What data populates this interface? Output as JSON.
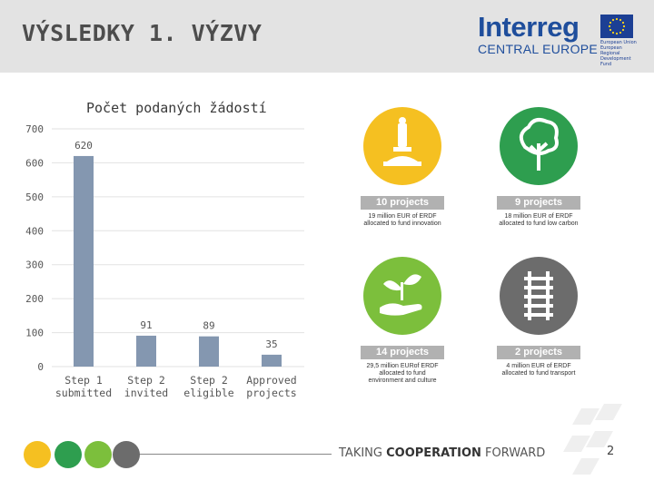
{
  "header": {
    "title": "VÝSLEDKY 1. VÝZVY"
  },
  "logo": {
    "word": "Interreg",
    "sub": "CENTRAL EUROPE",
    "eu_text": "European Union European Regional Development Fund"
  },
  "chart_data": {
    "type": "bar",
    "title": "Počet podaných žádostí",
    "categories": [
      [
        "Step 1",
        "submitted"
      ],
      [
        "Step 2",
        "invited"
      ],
      [
        "Step 2",
        "eligible"
      ],
      [
        "Approved",
        "projects"
      ]
    ],
    "values": [
      620,
      91,
      89,
      35
    ],
    "yticks": [
      0,
      100,
      200,
      300,
      400,
      500,
      600,
      700
    ],
    "ylim": [
      0,
      700
    ],
    "grid": true,
    "bar_color": "#8497b0"
  },
  "priorities": [
    {
      "icon": "microscope-icon",
      "color": "#f5c021",
      "projects": "10 projects",
      "desc": [
        "19 million EUR of ERDF",
        "allocated to fund innovation"
      ]
    },
    {
      "icon": "tree-icon",
      "color": "#2e9e4f",
      "projects": "9 projects",
      "desc": [
        "18 million EUR of ERDF",
        "allocated to fund low carbon"
      ]
    },
    {
      "icon": "plant-hand-icon",
      "color": "#7cbf3c",
      "projects": "14 projects",
      "desc": [
        "29,5 million EURof ERDF",
        "allocated to fund",
        "environment and culture"
      ]
    },
    {
      "icon": "railway-icon",
      "color": "#6c6c6c",
      "projects": "2 projects",
      "desc": [
        "4 million EUR of ERDF",
        "allocated to fund transport"
      ]
    }
  ],
  "footer": {
    "tag_regular": "TAKING ",
    "tag_bold": "COOPERATION",
    "tag_end": " FORWARD",
    "page": "2"
  }
}
